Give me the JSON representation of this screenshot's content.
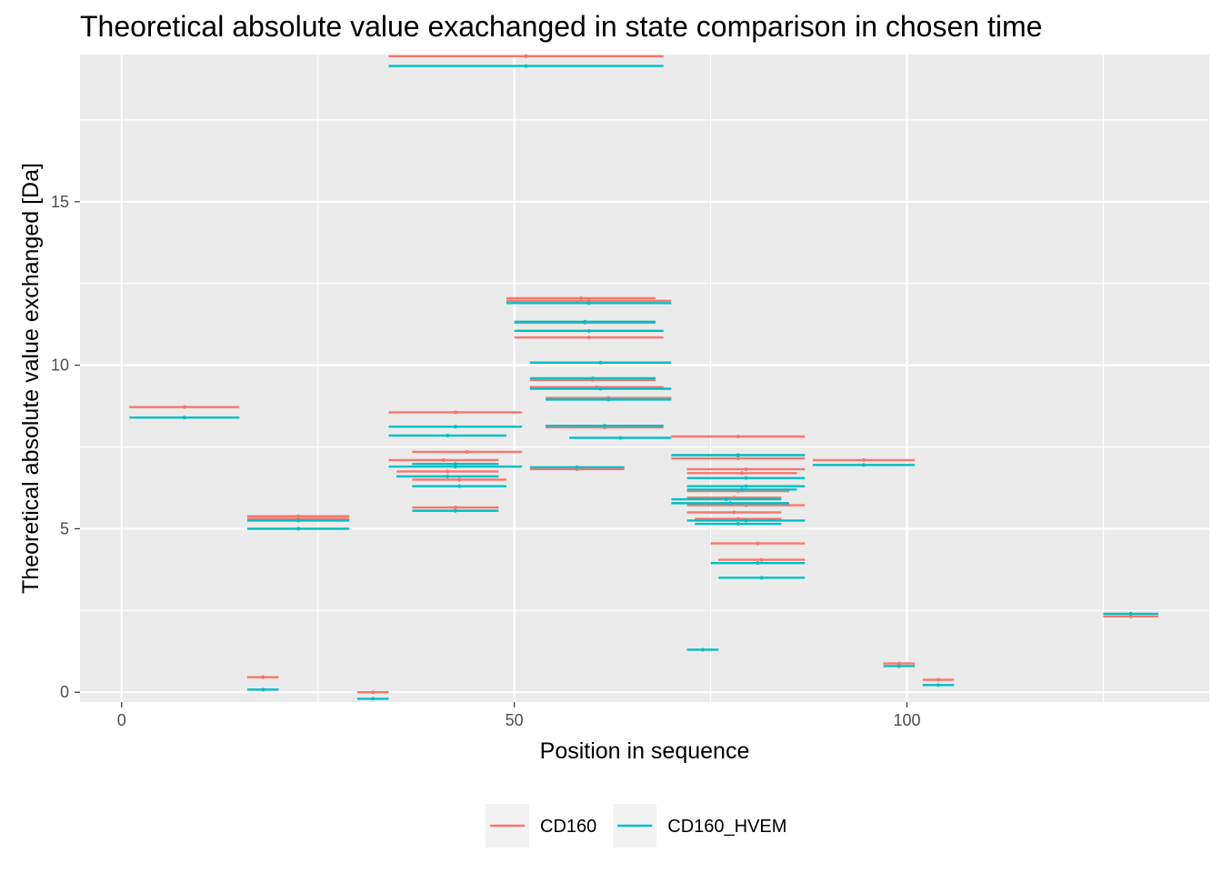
{
  "chart_data": {
    "type": "scatter",
    "title": "Theoretical absolute value exachanged in state comparison in chosen time",
    "xlabel": "Position in sequence",
    "ylabel": "Theoretical absolute value exchanged [Da]",
    "xlim": [
      -5.3,
      138.5
    ],
    "ylim": [
      -0.3,
      19.5
    ],
    "x_ticks": [
      0,
      50,
      100
    ],
    "y_ticks": [
      0,
      5,
      10,
      15
    ],
    "grid": true,
    "legend_position": "bottom",
    "series": [
      {
        "name": "CD160",
        "color": "#F8766D",
        "segments": [
          {
            "start": 1,
            "end": 15,
            "value": 8.72
          },
          {
            "start": 16,
            "end": 20,
            "value": 0.46
          },
          {
            "start": 16,
            "end": 29,
            "value": 5.3
          },
          {
            "start": 16,
            "end": 29,
            "value": 5.38
          },
          {
            "start": 30,
            "end": 34,
            "value": 0.0
          },
          {
            "start": 34,
            "end": 69,
            "value": 19.45
          },
          {
            "start": 34,
            "end": 51,
            "value": 8.56
          },
          {
            "start": 34,
            "end": 48,
            "value": 7.1
          },
          {
            "start": 35,
            "end": 48,
            "value": 6.75
          },
          {
            "start": 37,
            "end": 51,
            "value": 7.35
          },
          {
            "start": 37,
            "end": 49,
            "value": 6.5
          },
          {
            "start": 37,
            "end": 48,
            "value": 5.65
          },
          {
            "start": 49,
            "end": 68,
            "value": 12.05
          },
          {
            "start": 49,
            "end": 70,
            "value": 11.97
          },
          {
            "start": 50,
            "end": 68,
            "value": 11.3
          },
          {
            "start": 50,
            "end": 69,
            "value": 10.85
          },
          {
            "start": 52,
            "end": 68,
            "value": 9.55
          },
          {
            "start": 52,
            "end": 69,
            "value": 9.33
          },
          {
            "start": 54,
            "end": 70,
            "value": 9.0
          },
          {
            "start": 54,
            "end": 69,
            "value": 8.1
          },
          {
            "start": 52,
            "end": 64,
            "value": 6.82
          },
          {
            "start": 70,
            "end": 87,
            "value": 7.82
          },
          {
            "start": 70,
            "end": 87,
            "value": 7.15
          },
          {
            "start": 72,
            "end": 87,
            "value": 6.82
          },
          {
            "start": 72,
            "end": 86,
            "value": 6.7
          },
          {
            "start": 72,
            "end": 85,
            "value": 6.15
          },
          {
            "start": 72,
            "end": 84,
            "value": 5.95
          },
          {
            "start": 72,
            "end": 87,
            "value": 5.72
          },
          {
            "start": 72,
            "end": 84,
            "value": 5.5
          },
          {
            "start": 73,
            "end": 84,
            "value": 5.3
          },
          {
            "start": 75,
            "end": 87,
            "value": 4.55
          },
          {
            "start": 76,
            "end": 87,
            "value": 4.05
          },
          {
            "start": 88,
            "end": 101,
            "value": 7.1
          },
          {
            "start": 97,
            "end": 101,
            "value": 0.88
          },
          {
            "start": 102,
            "end": 106,
            "value": 0.38
          },
          {
            "start": 125,
            "end": 132,
            "value": 2.32
          }
        ]
      },
      {
        "name": "CD160_HVEM",
        "color": "#00BFC4",
        "segments": [
          {
            "start": 1,
            "end": 15,
            "value": 8.4
          },
          {
            "start": 16,
            "end": 20,
            "value": 0.08
          },
          {
            "start": 16,
            "end": 29,
            "value": 5.25
          },
          {
            "start": 16,
            "end": 29,
            "value": 5.0
          },
          {
            "start": 30,
            "end": 34,
            "value": -0.2
          },
          {
            "start": 34,
            "end": 69,
            "value": 19.15
          },
          {
            "start": 34,
            "end": 51,
            "value": 8.12
          },
          {
            "start": 34,
            "end": 49,
            "value": 7.85
          },
          {
            "start": 34,
            "end": 51,
            "value": 6.9
          },
          {
            "start": 37,
            "end": 48,
            "value": 6.98
          },
          {
            "start": 35,
            "end": 48,
            "value": 6.6
          },
          {
            "start": 37,
            "end": 49,
            "value": 6.3
          },
          {
            "start": 37,
            "end": 48,
            "value": 5.55
          },
          {
            "start": 49,
            "end": 70,
            "value": 11.9
          },
          {
            "start": 50,
            "end": 68,
            "value": 11.33
          },
          {
            "start": 50,
            "end": 69,
            "value": 11.05
          },
          {
            "start": 52,
            "end": 70,
            "value": 10.08
          },
          {
            "start": 52,
            "end": 68,
            "value": 9.6
          },
          {
            "start": 52,
            "end": 70,
            "value": 9.28
          },
          {
            "start": 54,
            "end": 70,
            "value": 8.95
          },
          {
            "start": 54,
            "end": 69,
            "value": 8.15
          },
          {
            "start": 57,
            "end": 70,
            "value": 7.78
          },
          {
            "start": 52,
            "end": 64,
            "value": 6.88
          },
          {
            "start": 70,
            "end": 87,
            "value": 7.25
          },
          {
            "start": 72,
            "end": 87,
            "value": 6.55
          },
          {
            "start": 72,
            "end": 87,
            "value": 6.3
          },
          {
            "start": 72,
            "end": 86,
            "value": 6.2
          },
          {
            "start": 70,
            "end": 84,
            "value": 5.9
          },
          {
            "start": 70,
            "end": 85,
            "value": 5.78
          },
          {
            "start": 72,
            "end": 87,
            "value": 5.25
          },
          {
            "start": 73,
            "end": 84,
            "value": 5.15
          },
          {
            "start": 75,
            "end": 87,
            "value": 3.95
          },
          {
            "start": 76,
            "end": 87,
            "value": 3.5
          },
          {
            "start": 72,
            "end": 76,
            "value": 1.3
          },
          {
            "start": 88,
            "end": 101,
            "value": 6.95
          },
          {
            "start": 97,
            "end": 101,
            "value": 0.8
          },
          {
            "start": 102,
            "end": 106,
            "value": 0.22
          },
          {
            "start": 125,
            "end": 132,
            "value": 2.4
          }
        ]
      }
    ]
  }
}
